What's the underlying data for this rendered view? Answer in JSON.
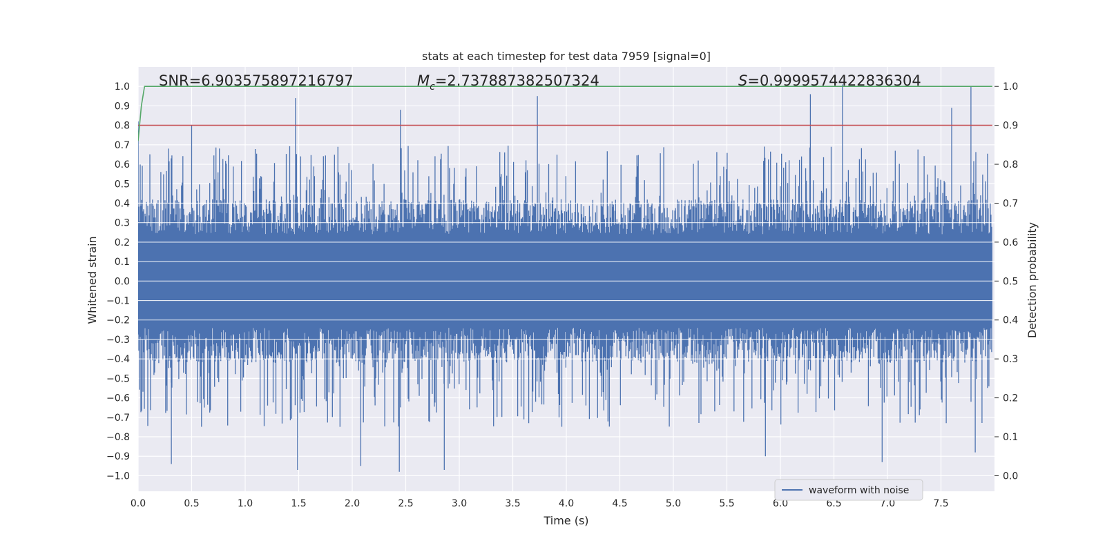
{
  "chart_data": {
    "type": "line",
    "title": "stats at each timestep for test data 7959 [signal=0]",
    "xlabel": "Time (s)",
    "ylabel_left": "Whitened strain",
    "ylabel_right": "Detection probability",
    "xlim": [
      0.0,
      8.0
    ],
    "ylim_left": [
      -1.08,
      1.1
    ],
    "ylim_right": [
      -0.04,
      1.05
    ],
    "xticks": [
      "0.0",
      "0.5",
      "1.0",
      "1.5",
      "2.0",
      "2.5",
      "3.0",
      "3.5",
      "4.0",
      "4.5",
      "5.0",
      "5.5",
      "6.0",
      "6.5",
      "7.0",
      "7.5"
    ],
    "xtick_values": [
      0.0,
      0.5,
      1.0,
      1.5,
      2.0,
      2.5,
      3.0,
      3.5,
      4.0,
      4.5,
      5.0,
      5.5,
      6.0,
      6.5,
      7.0,
      7.5
    ],
    "yticks_left": [
      "1.0",
      "0.9",
      "0.8",
      "0.7",
      "0.6",
      "0.5",
      "0.4",
      "0.3",
      "0.2",
      "0.1",
      "0.0",
      "−0.1",
      "−0.2",
      "−0.3",
      "−0.4",
      "−0.5",
      "−0.6",
      "−0.7",
      "−0.8",
      "−0.9",
      "−1.0"
    ],
    "ytick_values_left": [
      1.0,
      0.9,
      0.8,
      0.7,
      0.6,
      0.5,
      0.4,
      0.3,
      0.2,
      0.1,
      0.0,
      -0.1,
      -0.2,
      -0.3,
      -0.4,
      -0.5,
      -0.6,
      -0.7,
      -0.8,
      -0.9,
      -1.0
    ],
    "yticks_right": [
      "1.0",
      "0.9",
      "0.8",
      "0.7",
      "0.6",
      "0.5",
      "0.4",
      "0.3",
      "0.2",
      "0.1",
      "0.0"
    ],
    "ytick_values_right": [
      1.0,
      0.9,
      0.8,
      0.7,
      0.6,
      0.5,
      0.4,
      0.3,
      0.2,
      0.1,
      0.0
    ],
    "annotations": {
      "snr": "SNR=6.903575897216797",
      "mc_symbol": "M",
      "mc_subscript": "c",
      "mc_value": "=2.737887382507324",
      "s_symbol": "S",
      "s_value": "=0.9999574422836304"
    },
    "series": [
      {
        "name": "waveform with noise",
        "axis": "left",
        "color": "#4c72b0",
        "description": "whitened noise strain, dense band roughly ±0.2 core with spikes up to ±1.0",
        "envelope_peaks_top": [
          [
            0.0,
            0.82
          ],
          [
            0.5,
            0.8
          ],
          [
            1.47,
            0.94
          ],
          [
            2.45,
            0.88
          ],
          [
            3.73,
            0.95
          ],
          [
            6.28,
            0.96
          ],
          [
            6.58,
            1.01
          ],
          [
            7.6,
            0.89
          ],
          [
            7.78,
            1.0
          ]
        ],
        "envelope_peaks_bottom": [
          [
            0.31,
            -0.94
          ],
          [
            1.49,
            -0.97
          ],
          [
            2.08,
            -0.95
          ],
          [
            2.44,
            -0.98
          ],
          [
            2.86,
            -0.97
          ],
          [
            5.86,
            -0.9
          ],
          [
            6.95,
            -0.93
          ],
          [
            7.82,
            -0.88
          ]
        ]
      },
      {
        "name": "detection probability",
        "axis": "right",
        "color": "#55a868",
        "x": [
          0.0,
          0.03,
          0.06,
          0.1,
          0.2,
          8.0
        ],
        "y": [
          0.86,
          0.95,
          1.0,
          1.0,
          1.0,
          1.0
        ]
      },
      {
        "name": "threshold",
        "axis": "right",
        "color": "#c44e52",
        "x": [
          0.0,
          8.0
        ],
        "y": [
          0.9,
          0.9
        ]
      }
    ],
    "legend": {
      "position": "lower-center-right",
      "entries": [
        {
          "label": "waveform with noise",
          "color": "#4c72b0"
        }
      ]
    },
    "grid": true,
    "background": "#eaeaf2"
  }
}
